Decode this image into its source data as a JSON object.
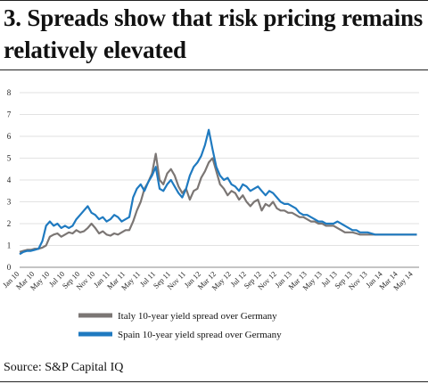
{
  "title": "3. Spreads show that risk pricing remains relatively elevated",
  "source": "Source: S&P Capital IQ",
  "chart_data": {
    "type": "line",
    "ylim": [
      0,
      8
    ],
    "yticks": [
      0,
      1,
      2,
      3,
      4,
      5,
      6,
      7,
      8
    ],
    "x_tick_labels": [
      "Jan 10",
      "Mar 10",
      "May 10",
      "Jul 10",
      "Sep 10",
      "Nov 10",
      "Jan 11",
      "Mar 11",
      "May 11",
      "Jul 11",
      "Sep 11",
      "Nov 11",
      "Jan 12",
      "Mar 12",
      "May 12",
      "Jul 12",
      "Sep 12",
      "Nov 12",
      "Jan 13",
      "Mar 13",
      "May 13",
      "Jul 13",
      "Sep 13",
      "Nov 13",
      "Jan 14",
      "Mar 14",
      "May 14"
    ],
    "grid": "horizontal",
    "legend_position": "bottom",
    "series": [
      {
        "name": "Italy 10-year yield spread over Germany",
        "color": "#7b7674",
        "x_month_index": [
          0,
          0.5,
          1,
          1.5,
          2,
          2.5,
          3,
          3.5,
          4,
          4.5,
          5,
          5.5,
          6,
          6.5,
          7,
          7.5,
          8,
          8.5,
          9,
          9.5,
          10,
          10.5,
          11,
          11.5,
          12,
          12.5,
          13,
          13.5,
          14,
          14.5,
          15,
          15.5,
          16,
          16.5,
          17,
          17.5,
          18,
          18.5,
          19,
          19.5,
          20,
          20.5,
          21,
          21.5,
          22,
          22.5,
          23,
          23.5,
          24,
          24.5,
          25,
          25.5,
          26,
          26.5,
          27,
          27.5,
          28,
          28.5,
          29,
          29.5,
          30,
          30.5,
          31,
          31.5,
          32,
          32.5,
          33,
          33.5,
          34,
          34.5,
          35,
          35.5,
          36,
          36.5,
          37,
          37.5,
          38,
          38.5,
          39,
          39.5,
          40,
          40.5,
          41,
          41.5,
          42,
          42.5,
          43,
          43.5,
          44,
          44.5,
          45,
          45.5,
          46,
          46.5,
          47,
          47.5,
          48,
          48.5,
          49,
          49.5,
          50,
          50.5,
          51,
          51.5,
          52,
          52.5
        ],
        "values": [
          0.7,
          0.75,
          0.8,
          0.8,
          0.85,
          0.85,
          0.9,
          1.0,
          1.4,
          1.5,
          1.55,
          1.4,
          1.5,
          1.6,
          1.55,
          1.7,
          1.6,
          1.65,
          1.8,
          2.0,
          1.8,
          1.55,
          1.65,
          1.5,
          1.45,
          1.55,
          1.5,
          1.6,
          1.7,
          1.7,
          2.1,
          2.6,
          3.0,
          3.6,
          3.9,
          4.3,
          5.2,
          4.0,
          3.8,
          4.3,
          4.5,
          4.2,
          3.7,
          3.4,
          3.6,
          3.1,
          3.5,
          3.6,
          4.1,
          4.4,
          4.8,
          5.0,
          4.4,
          3.8,
          3.6,
          3.3,
          3.5,
          3.4,
          3.1,
          3.3,
          3.0,
          2.8,
          3.0,
          3.1,
          2.6,
          2.9,
          2.8,
          3.0,
          2.7,
          2.6,
          2.6,
          2.5,
          2.5,
          2.4,
          2.3,
          2.3,
          2.2,
          2.1,
          2.1,
          2.0,
          2.0,
          1.9,
          1.9,
          1.9,
          1.8,
          1.7,
          1.6,
          1.6,
          1.6,
          1.55,
          1.5,
          1.5,
          1.5,
          1.5,
          1.5,
          1.5,
          1.5,
          1.5,
          1.5,
          1.5,
          1.5,
          1.5,
          1.5,
          1.5,
          1.5,
          1.5
        ]
      },
      {
        "name": "Spain 10-year yield spread over Germany",
        "color": "#1f7ac0",
        "x_month_index": [
          0,
          0.5,
          1,
          1.5,
          2,
          2.5,
          3,
          3.5,
          4,
          4.5,
          5,
          5.5,
          6,
          6.5,
          7,
          7.5,
          8,
          8.5,
          9,
          9.5,
          10,
          10.5,
          11,
          11.5,
          12,
          12.5,
          13,
          13.5,
          14,
          14.5,
          15,
          15.5,
          16,
          16.5,
          17,
          17.5,
          18,
          18.5,
          19,
          19.5,
          20,
          20.5,
          21,
          21.5,
          22,
          22.5,
          23,
          23.5,
          24,
          24.5,
          25,
          25.5,
          26,
          26.5,
          27,
          27.5,
          28,
          28.5,
          29,
          29.5,
          30,
          30.5,
          31,
          31.5,
          32,
          32.5,
          33,
          33.5,
          34,
          34.5,
          35,
          35.5,
          36,
          36.5,
          37,
          37.5,
          38,
          38.5,
          39,
          39.5,
          40,
          40.5,
          41,
          41.5,
          42,
          42.5,
          43,
          43.5,
          44,
          44.5,
          45,
          45.5,
          46,
          46.5,
          47,
          47.5,
          48,
          48.5,
          49,
          49.5,
          50,
          50.5,
          51,
          51.5,
          52,
          52.5
        ],
        "values": [
          0.6,
          0.7,
          0.75,
          0.75,
          0.8,
          0.85,
          1.2,
          1.9,
          2.1,
          1.9,
          2.0,
          1.8,
          1.9,
          1.8,
          1.9,
          2.2,
          2.4,
          2.6,
          2.8,
          2.5,
          2.4,
          2.2,
          2.3,
          2.1,
          2.2,
          2.4,
          2.3,
          2.1,
          2.2,
          2.3,
          3.2,
          3.6,
          3.8,
          3.5,
          3.9,
          4.2,
          4.6,
          3.6,
          3.5,
          3.8,
          4.0,
          3.7,
          3.4,
          3.2,
          3.6,
          4.2,
          4.6,
          4.8,
          5.1,
          5.6,
          6.3,
          5.4,
          4.6,
          4.2,
          4.0,
          4.1,
          3.8,
          3.7,
          3.5,
          3.8,
          3.7,
          3.5,
          3.6,
          3.7,
          3.5,
          3.3,
          3.5,
          3.4,
          3.2,
          3.0,
          2.9,
          2.9,
          2.8,
          2.7,
          2.5,
          2.4,
          2.4,
          2.3,
          2.2,
          2.1,
          2.1,
          2.0,
          2.0,
          2.0,
          2.1,
          2.0,
          1.9,
          1.8,
          1.7,
          1.7,
          1.6,
          1.6,
          1.6,
          1.55,
          1.5,
          1.5,
          1.5,
          1.5,
          1.5,
          1.5,
          1.5,
          1.5,
          1.5,
          1.5,
          1.5,
          1.5
        ]
      }
    ]
  }
}
